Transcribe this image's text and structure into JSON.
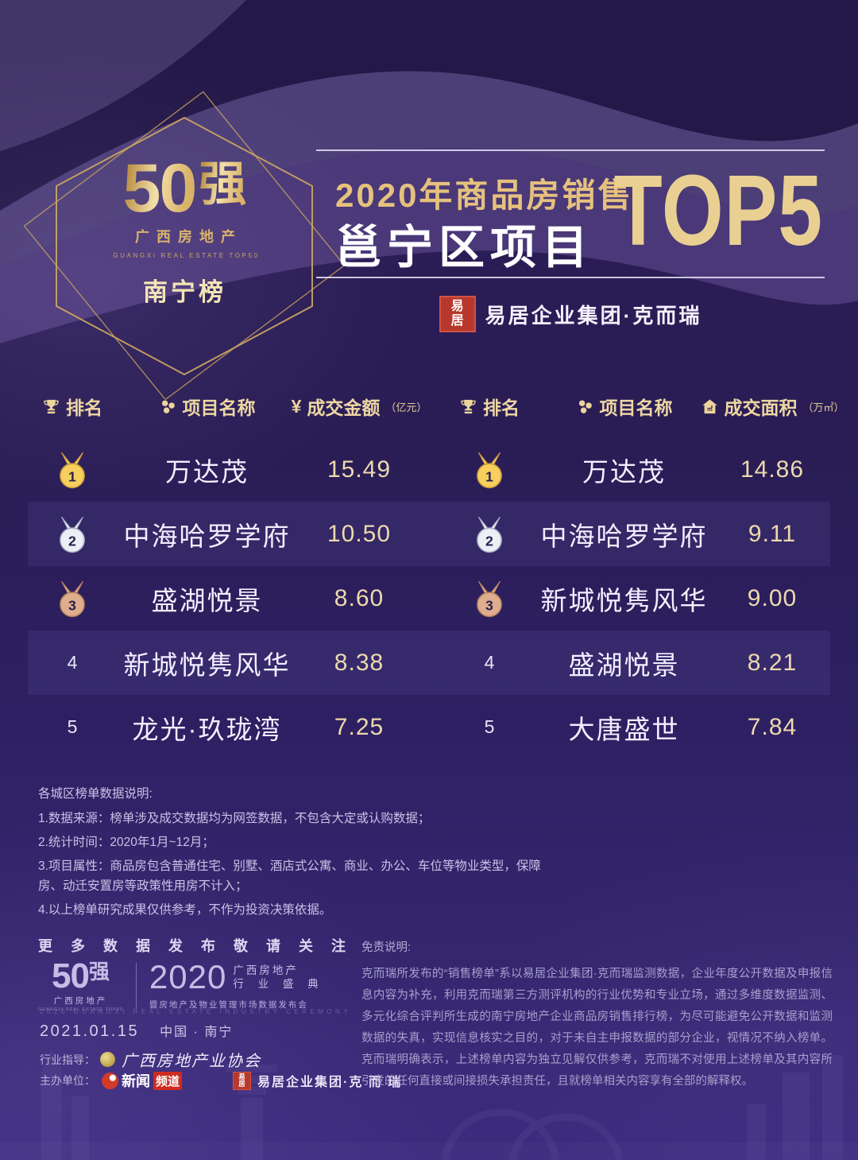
{
  "poster": {
    "colors": {
      "background_top": "#2b1e5c",
      "background_bottom": "#3d2c7e",
      "gold": "#e5c17e",
      "gold_bright": "#ecd49c",
      "value_text": "#ecd9ad",
      "white_text": "#f2eeff",
      "muted_text": "#c9c2e6",
      "disclaimer_text": "#a7a0cb",
      "seal_red": "#b8382d",
      "medal_gold": "#f7cf5d",
      "medal_silver": "#eceff6",
      "medal_bronze": "#dfae8c",
      "row_stripe": "rgba(152,140,225,0.10)"
    },
    "badge": {
      "number": "50",
      "strong": "强",
      "sub_cn": "广西房地产",
      "sub_en": "GUANGXI REAL ESTATE TOP50",
      "list_name": "南宁榜"
    },
    "header": {
      "title_gold": "2020年商品房销售",
      "title_white": "邕宁区项目",
      "title_top": "TOP5",
      "brand_seal_char1": "易",
      "brand_seal_char2": "居",
      "brand_name": "易居企业集团·克而瑞"
    }
  },
  "tables": [
    {
      "headers": [
        {
          "icon": "trophy-icon",
          "label": "排名",
          "unit": ""
        },
        {
          "icon": "projects-icon",
          "label": "项目名称",
          "unit": ""
        },
        {
          "icon": "yen-icon",
          "label": "成交金额",
          "unit": "（亿元）"
        }
      ],
      "rows": [
        {
          "rank": "1",
          "medal": "gold",
          "name": "万达茂",
          "value": "15.49"
        },
        {
          "rank": "2",
          "medal": "silver",
          "name": "中海哈罗学府",
          "value": "10.50"
        },
        {
          "rank": "3",
          "medal": "bronze",
          "name": "盛湖悦景",
          "value": "8.60"
        },
        {
          "rank": "4",
          "medal": "none",
          "name": "新城悦隽风华",
          "value": "8.38"
        },
        {
          "rank": "5",
          "medal": "none",
          "name": "龙光·玖珑湾",
          "value": "7.25"
        }
      ]
    },
    {
      "headers": [
        {
          "icon": "trophy-icon",
          "label": "排名",
          "unit": ""
        },
        {
          "icon": "projects-icon",
          "label": "项目名称",
          "unit": ""
        },
        {
          "icon": "area-icon",
          "label": "成交面积",
          "unit": "（万㎡）"
        }
      ],
      "rows": [
        {
          "rank": "1",
          "medal": "gold",
          "name": "万达茂",
          "value": "14.86"
        },
        {
          "rank": "2",
          "medal": "silver",
          "name": "中海哈罗学府",
          "value": "9.11"
        },
        {
          "rank": "3",
          "medal": "bronze",
          "name": "新城悦隽风华",
          "value": "9.00"
        },
        {
          "rank": "4",
          "medal": "none",
          "name": "盛湖悦景",
          "value": "8.21"
        },
        {
          "rank": "5",
          "medal": "none",
          "name": "大唐盛世",
          "value": "7.84"
        }
      ]
    }
  ],
  "chart_data": [
    {
      "type": "table",
      "title": "2020年商品房销售 邕宁区项目TOP5 — 成交金额",
      "columns": [
        "排名",
        "项目名称",
        "成交金额（亿元）"
      ],
      "rows": [
        [
          1,
          "万达茂",
          15.49
        ],
        [
          2,
          "中海哈罗学府",
          10.5
        ],
        [
          3,
          "盛湖悦景",
          8.6
        ],
        [
          4,
          "新城悦隽风华",
          8.38
        ],
        [
          5,
          "龙光·玖珑湾",
          7.25
        ]
      ]
    },
    {
      "type": "table",
      "title": "2020年商品房销售 邕宁区项目TOP5 — 成交面积",
      "columns": [
        "排名",
        "项目名称",
        "成交面积（万㎡）"
      ],
      "rows": [
        [
          1,
          "万达茂",
          14.86
        ],
        [
          2,
          "中海哈罗学府",
          9.11
        ],
        [
          3,
          "新城悦隽风华",
          9.0
        ],
        [
          4,
          "盛湖悦景",
          8.21
        ],
        [
          5,
          "大唐盛世",
          7.84
        ]
      ]
    }
  ],
  "notes": {
    "title": "各城区榜单数据说明:",
    "items": [
      "1.数据来源：榜单涉及成交数据均为网签数据，不包含大定或认购数据；",
      "2.统计时间：2020年1月~12月；",
      "3.项目属性：商品房包含普通住宅、别墅、酒店式公寓、商业、办公、车位等物业类型，保障房、动迁安置房等政策性用房不计入；",
      "4.以上榜单研究成果仅供参考，不作为投资决策依据。"
    ]
  },
  "footer": {
    "follow_text": "更 多 数 据 发 布 敬 请 关 注",
    "logo50_number": "50",
    "logo50_strong": "强",
    "logo50_sub": "广西房地产",
    "logo50_caption": "GUANGXI REAL ESTATE TOP50",
    "event_year": "2020",
    "event_line1": "广西房地产",
    "event_line2": "行 业 盛 典",
    "event_sub": "暨房地产及物业管理市场数据发布会",
    "event_caption": "2020 GUANGXI REAL ESTATE INDUSTRY CEREMONY",
    "date": "2021.01.15",
    "location": "中国 · 南宁",
    "industry_label": "行业指导：",
    "industry_org": "广西房地产业协会",
    "host_label": "主办单位：",
    "host1_part1": "新闻",
    "host1_part2": "频道",
    "host2_seal_char1": "易",
    "host2_seal_char2": "居",
    "host2_name": "易居企业集团·克 而 瑞",
    "disclaimer_title": "免责说明:",
    "disclaimer_body": "克而瑞所发布的“销售榜单”系以易居企业集团·克而瑞监测数据，企业年度公开数据及申报信息内容为补充，利用克而瑞第三方测评机构的行业优势和专业立场，通过多维度数据监测、多元化综合评判所生成的南宁房地产企业商品房销售排行榜，为尽可能避免公开数据和监测数据的失真，实现信息核实之目的，对于未自主申报数据的部分企业，视情况不纳入榜单。克而瑞明确表示，上述榜单内容为独立见解仅供参考，克而瑞不对使用上述榜单及其内容所引发的任何直接或间接损失承担责任，且就榜单相关内容享有全部的解释权。"
  }
}
